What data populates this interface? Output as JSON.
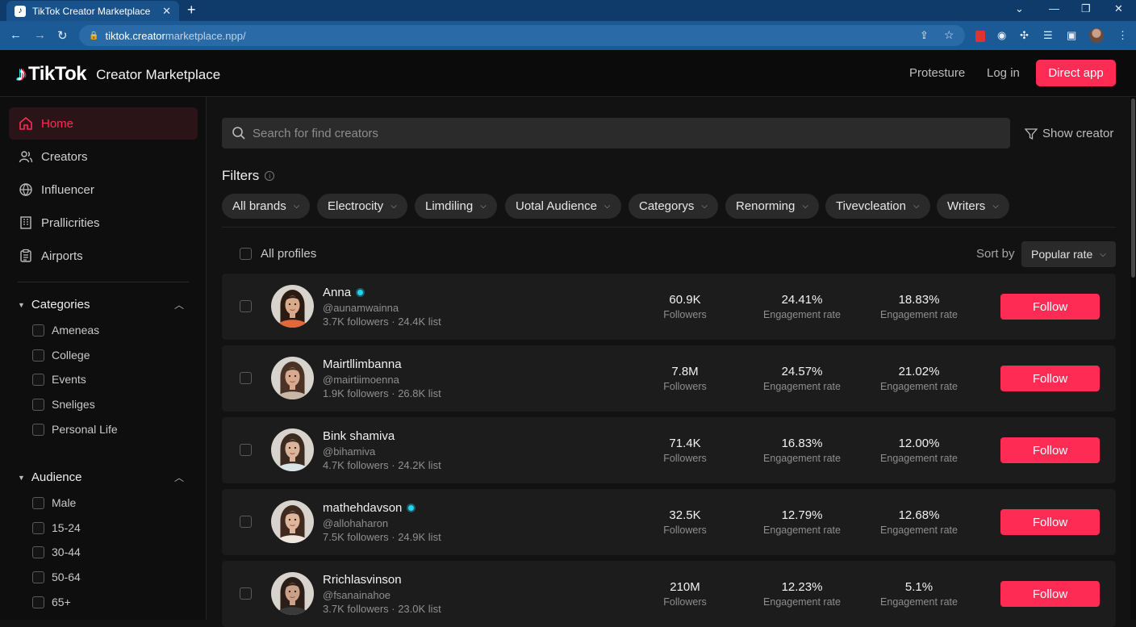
{
  "browser": {
    "tab_title": "TikTok Creator Marketplace",
    "tab_close": "✕",
    "new_tab": "+",
    "url_host": "tiktok.creator",
    "url_rest": "marketplace.npp/"
  },
  "header": {
    "brand": "TikTok",
    "subtitle": "Creator Marketplace",
    "link1": "Protesture",
    "link2": "Log in",
    "cta": "Direct app"
  },
  "sidebar": {
    "nav": [
      {
        "label": "Home",
        "icon": "home-icon"
      },
      {
        "label": "Creators",
        "icon": "users-icon"
      },
      {
        "label": "Influencer",
        "icon": "globe-icon"
      },
      {
        "label": "Prallicrities",
        "icon": "building-icon"
      },
      {
        "label": "Airports",
        "icon": "clipboard-icon"
      }
    ],
    "categories": {
      "title": "Categories",
      "items": [
        "Ameneas",
        "College",
        "Events",
        "Sneliges",
        "Personal Life"
      ]
    },
    "audience": {
      "title": "Audience",
      "items": [
        "Male",
        "15-24",
        "30-44",
        "50-64",
        "65+"
      ]
    }
  },
  "search": {
    "placeholder": "Search for find creators"
  },
  "show_creator": "Show creator",
  "filters": {
    "title": "Filters",
    "chips": [
      "All brands",
      "Electrocity",
      "Limdiling",
      "Uotal Audience",
      "Categorys",
      "Renorming",
      "Tivevcleation",
      "Writers"
    ]
  },
  "list": {
    "all_profiles": "All profiles",
    "sort_label": "Sort by",
    "sort_value": "Popular rate"
  },
  "creators": [
    {
      "name": "Anna",
      "verified": true,
      "handle": "@aunamwainna",
      "meta": "3.7K followers · 24.4K list",
      "followers": "60.9K",
      "followers_label": "Followers",
      "eng1": "24.41%",
      "eng1_label": "Engagement rate",
      "eng2": "18.83%",
      "eng2_label": "Engagement rate",
      "button": "Follow",
      "skin": "#d9a98b",
      "hair": "#2a1a12",
      "shirt": "#e0683a"
    },
    {
      "name": "Mairtllimbanna",
      "verified": false,
      "handle": "@mairtiimoenna",
      "meta": "1.9K followers · 26.8K list",
      "followers": "7.8M",
      "followers_label": "Followers",
      "eng1": "24.57%",
      "eng1_label": "Engagement rate",
      "eng2": "21.02%",
      "eng2_label": "Engagement rate",
      "button": "Follow",
      "skin": "#d7a98f",
      "hair": "#4a3224",
      "shirt": "#c9b8a8"
    },
    {
      "name": "Bink shamiva",
      "verified": false,
      "handle": "@bihamiva",
      "meta": "4.7K followers · 24.2K list",
      "followers": "71.4K",
      "followers_label": "Followers",
      "eng1": "16.83%",
      "eng1_label": "Engagement rate",
      "eng2": "12.00%",
      "eng2_label": "Engagement rate",
      "button": "Follow",
      "skin": "#dcb39b",
      "hair": "#3b2a20",
      "shirt": "#d9e4e6"
    },
    {
      "name": "mathehdavson",
      "verified": true,
      "handle": "@allohaharon",
      "meta": "7.5K followers · 24.9K list",
      "followers": "32.5K",
      "followers_label": "Followers",
      "eng1": "12.79%",
      "eng1_label": "Engagement rate",
      "eng2": "12.68%",
      "eng2_label": "Engagement rate",
      "button": "Follow",
      "skin": "#dfb59c",
      "hair": "#3e2a1e",
      "shirt": "#efe6dd"
    },
    {
      "name": "Rrichlasvinson",
      "verified": false,
      "handle": "@fsanainahoe",
      "meta": "3.7K followers · 23.0K list",
      "followers": "210M",
      "followers_label": "Followers",
      "eng1": "12.23%",
      "eng1_label": "Engagement rate",
      "eng2": "5.1%",
      "eng2_label": "Engagement rate",
      "button": "Follow",
      "skin": "#c9a088",
      "hair": "#2b1e16",
      "shirt": "#3a3a3a"
    }
  ],
  "colors": {
    "accent": "#fe2c55",
    "verified": "#20d5ec",
    "background": "#121212",
    "card": "#1c1c1c"
  }
}
